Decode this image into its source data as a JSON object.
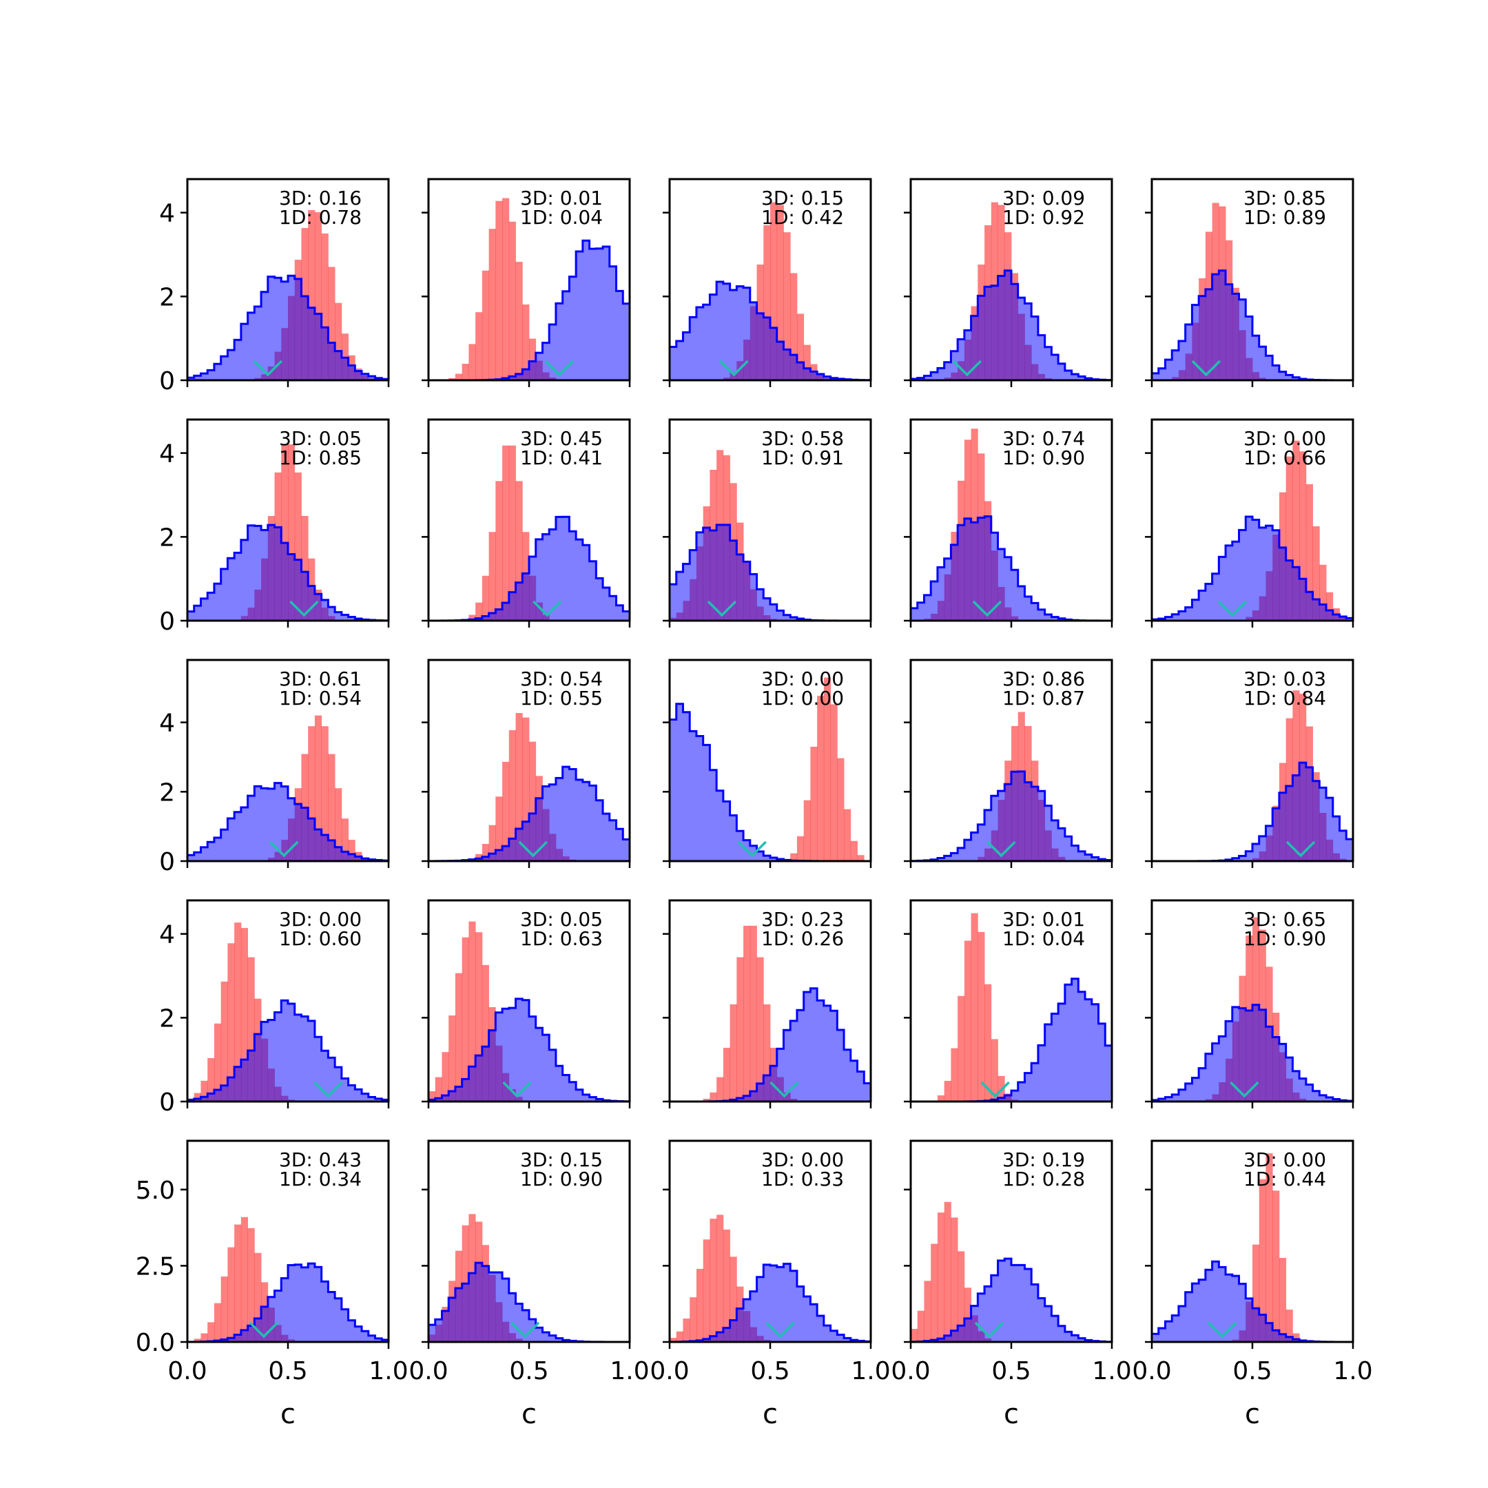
{
  "figure": {
    "colors": {
      "obs": "#ff0000",
      "obs_alpha": 0.5,
      "model_fill": "#0000ff",
      "model_alpha": 0.5,
      "model_edge": "#0000ff",
      "marker": "#20c0b0"
    }
  },
  "chart_data": {
    "type": "grid-histograms",
    "rows": 5,
    "cols": 5,
    "xlabel": "c",
    "xlim": [
      0,
      1
    ],
    "xticks": [
      "0.0",
      "0.5",
      "1.0"
    ],
    "row_ylims": [
      [
        0,
        4.8
      ],
      [
        0,
        4.8
      ],
      [
        0,
        5.8
      ],
      [
        0,
        4.8
      ],
      [
        0,
        6.6
      ]
    ],
    "row_yticks": [
      [
        "0",
        "2",
        "4"
      ],
      [
        "0",
        "2",
        "4"
      ],
      [
        "0",
        "2",
        "4"
      ],
      [
        "0",
        "2",
        "4"
      ],
      [
        "0.0",
        "2.5",
        "5.0"
      ]
    ],
    "row_ytick_values": [
      [
        0,
        2,
        4
      ],
      [
        0,
        2,
        4
      ],
      [
        0,
        2,
        4
      ],
      [
        0,
        2,
        4
      ],
      [
        0,
        2.5,
        5.0
      ]
    ],
    "panels": [
      {
        "ann3d": "3D: 0.16",
        "ann1d": "1D: 0.78",
        "obs": {
          "mu": 0.63,
          "sd": 0.095,
          "peak": 4.1
        },
        "model": {
          "mu": 0.48,
          "sd": 0.17,
          "peak": 2.5,
          "lo": 0,
          "hi": 1
        },
        "marker": 0.4
      },
      {
        "ann3d": "3D: 0.01",
        "ann1d": "1D: 0.04",
        "obs": {
          "mu": 0.37,
          "sd": 0.085,
          "peak": 4.4
        },
        "model": {
          "mu": 0.82,
          "sd": 0.15,
          "peak": 3.3,
          "lo": 0,
          "hi": 1
        },
        "marker": 0.65
      },
      {
        "ann3d": "3D: 0.15",
        "ann1d": "1D: 0.42",
        "obs": {
          "mu": 0.53,
          "sd": 0.085,
          "peak": 4.3
        },
        "model": {
          "mu": 0.3,
          "sd": 0.19,
          "peak": 2.3,
          "lo": 0,
          "hi": 1
        },
        "marker": 0.32
      },
      {
        "ann3d": "3D: 0.09",
        "ann1d": "1D: 0.92",
        "obs": {
          "mu": 0.43,
          "sd": 0.085,
          "peak": 4.3
        },
        "model": {
          "mu": 0.46,
          "sd": 0.15,
          "peak": 2.5,
          "lo": 0,
          "hi": 1
        },
        "marker": 0.28
      },
      {
        "ann3d": "3D: 0.85",
        "ann1d": "1D: 0.89",
        "obs": {
          "mu": 0.33,
          "sd": 0.075,
          "peak": 4.3
        },
        "model": {
          "mu": 0.34,
          "sd": 0.14,
          "peak": 2.5,
          "lo": 0,
          "hi": 1
        },
        "marker": 0.27
      },
      {
        "ann3d": "3D: 0.05",
        "ann1d": "1D: 0.85",
        "obs": {
          "mu": 0.5,
          "sd": 0.08,
          "peak": 4.3
        },
        "model": {
          "mu": 0.38,
          "sd": 0.17,
          "peak": 2.3,
          "lo": 0,
          "hi": 1
        },
        "marker": 0.58
      },
      {
        "ann3d": "3D: 0.45",
        "ann1d": "1D: 0.41",
        "obs": {
          "mu": 0.4,
          "sd": 0.07,
          "peak": 4.3
        },
        "model": {
          "mu": 0.66,
          "sd": 0.15,
          "peak": 2.4,
          "lo": 0,
          "hi": 1
        },
        "marker": 0.59
      },
      {
        "ann3d": "3D: 0.58",
        "ann1d": "1D: 0.91",
        "obs": {
          "mu": 0.26,
          "sd": 0.085,
          "peak": 4.1
        },
        "model": {
          "mu": 0.23,
          "sd": 0.15,
          "peak": 2.3,
          "lo": 0,
          "hi": 1
        },
        "marker": 0.26
      },
      {
        "ann3d": "3D: 0.74",
        "ann1d": "1D: 0.90",
        "obs": {
          "mu": 0.31,
          "sd": 0.075,
          "peak": 4.6
        },
        "model": {
          "mu": 0.33,
          "sd": 0.15,
          "peak": 2.5,
          "lo": 0,
          "hi": 1
        },
        "marker": 0.38
      },
      {
        "ann3d": "3D: 0.00",
        "ann1d": "1D: 0.66",
        "obs": {
          "mu": 0.72,
          "sd": 0.085,
          "peak": 4.3
        },
        "model": {
          "mu": 0.52,
          "sd": 0.17,
          "peak": 2.4,
          "lo": 0,
          "hi": 1
        },
        "marker": 0.4
      },
      {
        "ann3d": "3D: 0.61",
        "ann1d": "1D: 0.54",
        "obs": {
          "mu": 0.65,
          "sd": 0.085,
          "peak": 4.2
        },
        "model": {
          "mu": 0.42,
          "sd": 0.18,
          "peak": 2.2,
          "lo": 0,
          "hi": 1
        },
        "marker": 0.48
      },
      {
        "ann3d": "3D: 0.54",
        "ann1d": "1D: 0.55",
        "obs": {
          "mu": 0.46,
          "sd": 0.085,
          "peak": 4.3
        },
        "model": {
          "mu": 0.7,
          "sd": 0.17,
          "peak": 2.6,
          "lo": 0,
          "hi": 1
        },
        "marker": 0.52
      },
      {
        "ann3d": "3D: 0.00",
        "ann1d": "1D: 0.00",
        "obs": {
          "mu": 0.78,
          "sd": 0.065,
          "peak": 5.3
        },
        "model": {
          "mu": 0.05,
          "sd": 0.17,
          "peak": 4.3,
          "lo": 0,
          "hi": 1
        },
        "marker": 0.41
      },
      {
        "ann3d": "3D: 0.86",
        "ann1d": "1D: 0.87",
        "obs": {
          "mu": 0.55,
          "sd": 0.075,
          "peak": 4.3
        },
        "model": {
          "mu": 0.54,
          "sd": 0.15,
          "peak": 2.5,
          "lo": 0,
          "hi": 1
        },
        "marker": 0.45
      },
      {
        "ann3d": "3D: 0.03",
        "ann1d": "1D: 0.84",
        "obs": {
          "mu": 0.73,
          "sd": 0.075,
          "peak": 5.0
        },
        "model": {
          "mu": 0.76,
          "sd": 0.13,
          "peak": 2.7,
          "lo": 0,
          "hi": 1
        },
        "marker": 0.74
      },
      {
        "ann3d": "3D: 0.00",
        "ann1d": "1D: 0.60",
        "obs": {
          "mu": 0.26,
          "sd": 0.085,
          "peak": 4.3
        },
        "model": {
          "mu": 0.5,
          "sd": 0.17,
          "peak": 2.3,
          "lo": 0,
          "hi": 1
        },
        "marker": 0.7
      },
      {
        "ann3d": "3D: 0.05",
        "ann1d": "1D: 0.63",
        "obs": {
          "mu": 0.22,
          "sd": 0.085,
          "peak": 4.3
        },
        "model": {
          "mu": 0.44,
          "sd": 0.15,
          "peak": 2.4,
          "lo": 0,
          "hi": 1
        },
        "marker": 0.44
      },
      {
        "ann3d": "3D: 0.23",
        "ann1d": "1D: 0.26",
        "obs": {
          "mu": 0.4,
          "sd": 0.075,
          "peak": 4.3
        },
        "model": {
          "mu": 0.72,
          "sd": 0.14,
          "peak": 2.6,
          "lo": 0,
          "hi": 1
        },
        "marker": 0.57
      },
      {
        "ann3d": "3D: 0.01",
        "ann1d": "1D: 0.04",
        "obs": {
          "mu": 0.32,
          "sd": 0.065,
          "peak": 4.5
        },
        "model": {
          "mu": 0.82,
          "sd": 0.14,
          "peak": 2.8,
          "lo": 0,
          "hi": 1
        },
        "marker": 0.42
      },
      {
        "ann3d": "3D: 0.65",
        "ann1d": "1D: 0.90",
        "obs": {
          "mu": 0.52,
          "sd": 0.08,
          "peak": 4.4
        },
        "model": {
          "mu": 0.48,
          "sd": 0.16,
          "peak": 2.3,
          "lo": 0,
          "hi": 1
        },
        "marker": 0.46
      },
      {
        "ann3d": "3D: 0.43",
        "ann1d": "1D: 0.34",
        "obs": {
          "mu": 0.28,
          "sd": 0.085,
          "peak": 4.1
        },
        "model": {
          "mu": 0.58,
          "sd": 0.15,
          "peak": 2.6,
          "lo": 0,
          "hi": 1
        },
        "marker": 0.38
      },
      {
        "ann3d": "3D: 0.15",
        "ann1d": "1D: 0.90",
        "obs": {
          "mu": 0.22,
          "sd": 0.085,
          "peak": 4.2
        },
        "model": {
          "mu": 0.28,
          "sd": 0.15,
          "peak": 2.5,
          "lo": 0,
          "hi": 1
        },
        "marker": 0.48
      },
      {
        "ann3d": "3D: 0.00",
        "ann1d": "1D: 0.33",
        "obs": {
          "mu": 0.24,
          "sd": 0.085,
          "peak": 4.2
        },
        "model": {
          "mu": 0.54,
          "sd": 0.14,
          "peak": 2.6,
          "lo": 0,
          "hi": 1
        },
        "marker": 0.55
      },
      {
        "ann3d": "3D: 0.19",
        "ann1d": "1D: 0.28",
        "obs": {
          "mu": 0.18,
          "sd": 0.075,
          "peak": 4.6
        },
        "model": {
          "mu": 0.5,
          "sd": 0.14,
          "peak": 2.7,
          "lo": 0,
          "hi": 1
        },
        "marker": 0.39
      },
      {
        "ann3d": "3D: 0.00",
        "ann1d": "1D: 0.44",
        "obs": {
          "mu": 0.58,
          "sd": 0.055,
          "peak": 6.2
        },
        "model": {
          "mu": 0.33,
          "sd": 0.15,
          "peak": 2.5,
          "lo": 0,
          "hi": 1
        },
        "marker": 0.35
      }
    ]
  }
}
